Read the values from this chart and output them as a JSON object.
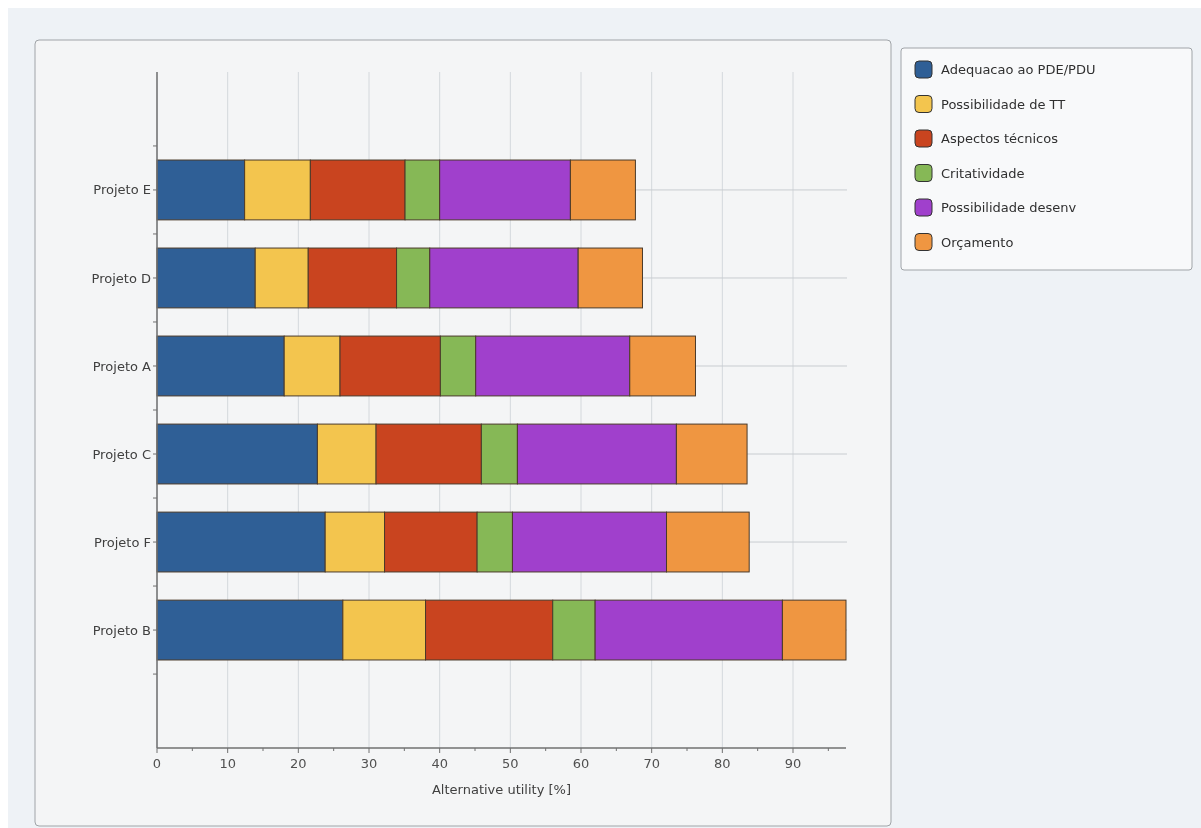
{
  "chart_data": {
    "type": "bar",
    "orientation": "horizontal",
    "stacked": true,
    "xlabel": "Alternative utility [%]",
    "categories": [
      "Projeto E",
      "Projeto D",
      "Projeto A",
      "Projeto C",
      "Projeto F",
      "Projeto B"
    ],
    "series": [
      {
        "name": "Adequacao ao PDE/PDU",
        "color": "#2f5f96",
        "values": [
          12.4,
          13.9,
          18.0,
          22.7,
          23.8,
          26.3
        ]
      },
      {
        "name": "Possibilidade de TT",
        "color": "#f3c54e",
        "values": [
          9.3,
          7.5,
          7.9,
          8.3,
          8.4,
          11.7
        ]
      },
      {
        "name": "Aspectos técnicos",
        "color": "#c9441f",
        "values": [
          13.4,
          12.5,
          14.2,
          14.9,
          13.1,
          18.0
        ]
      },
      {
        "name": "Critatividade",
        "color": "#86b856",
        "values": [
          4.9,
          4.7,
          5.0,
          5.1,
          5.0,
          6.0
        ]
      },
      {
        "name": "Possibilidade desenv",
        "color": "#a040cc",
        "values": [
          18.5,
          21.0,
          21.8,
          22.5,
          21.8,
          26.5
        ]
      },
      {
        "name": "Orçamento",
        "color": "#ef9641",
        "values": [
          9.2,
          9.1,
          9.3,
          10.0,
          11.7,
          9.0
        ]
      }
    ],
    "xlim": [
      0,
      97.5
    ],
    "xticks": [
      0,
      {
        "value": 5,
        "label": null
      },
      10,
      {
        "value": 15,
        "label": null
      },
      20,
      {
        "value": 25,
        "label": null
      },
      30,
      {
        "value": 35,
        "label": null
      },
      40,
      {
        "value": 45,
        "label": null
      },
      50,
      {
        "value": 55,
        "label": null
      },
      60,
      {
        "value": 65,
        "label": null
      },
      70,
      {
        "value": 75,
        "label": null
      },
      80,
      {
        "value": 85,
        "label": null
      },
      90,
      {
        "value": 95,
        "label": null
      }
    ],
    "grid": true,
    "legend": "top right"
  }
}
